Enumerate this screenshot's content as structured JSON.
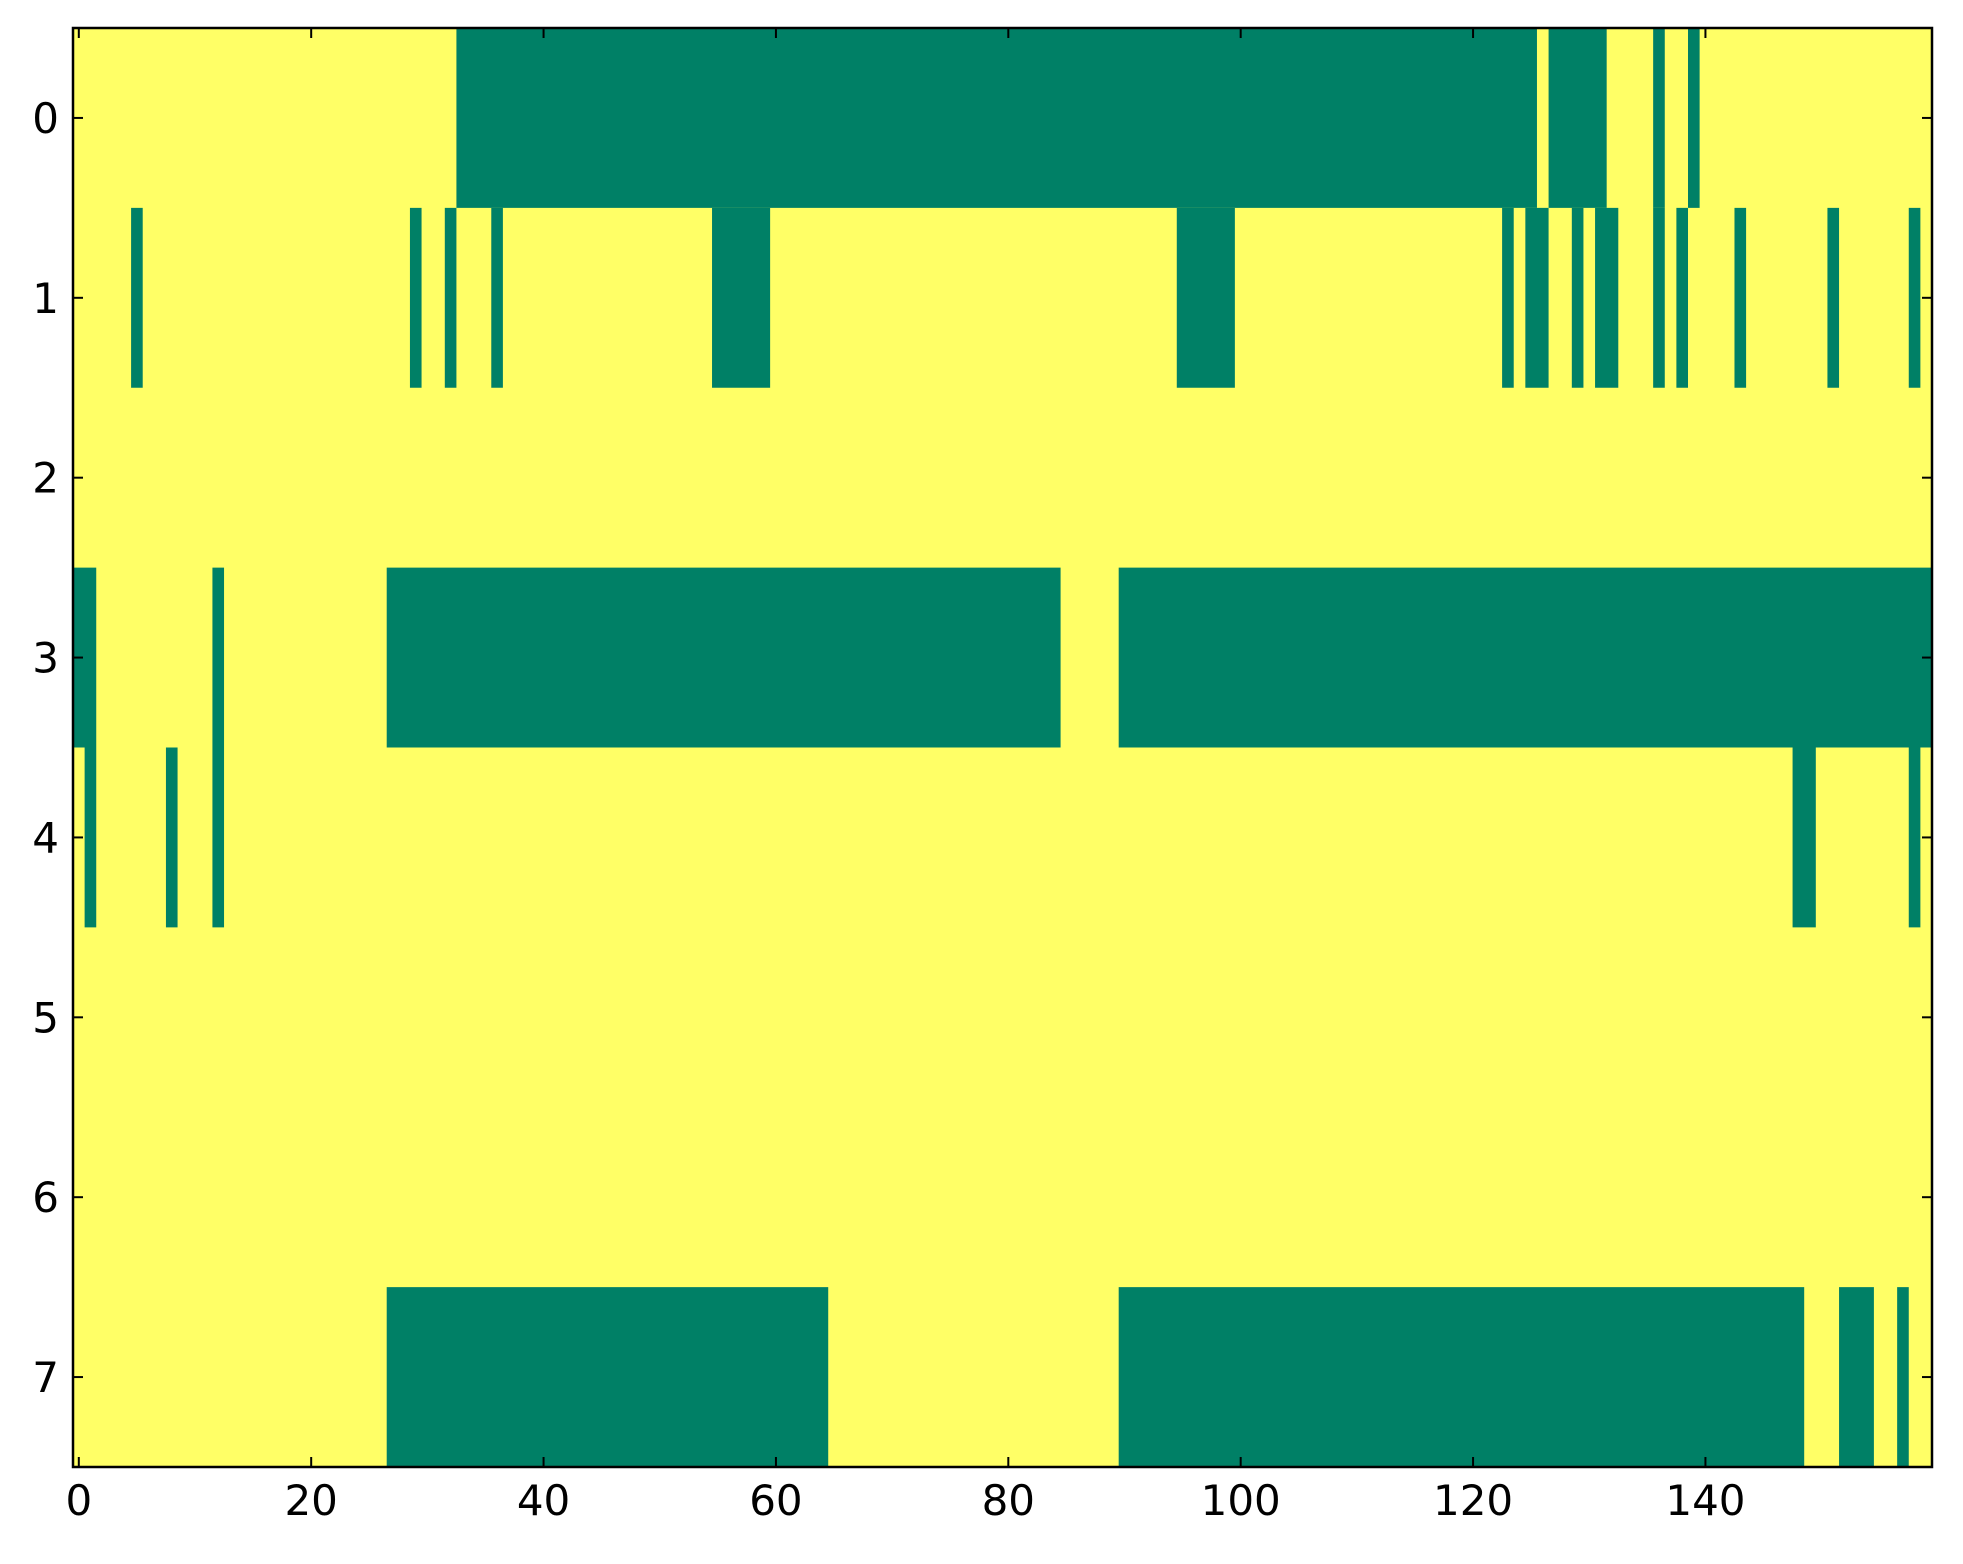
{
  "chart_data": {
    "type": "heatmap",
    "low_color": "#ffff66",
    "high_color": "#008066",
    "xlim": [
      -0.5,
      159.5
    ],
    "ylim": [
      7.5,
      -0.5
    ],
    "xticks": [
      0,
      20,
      40,
      60,
      80,
      100,
      120,
      140
    ],
    "yticks": [
      0,
      1,
      2,
      3,
      4,
      5,
      6,
      7
    ],
    "rows": [
      {
        "y": 0,
        "runs": [
          [
            33,
            125
          ],
          [
            127,
            131
          ],
          [
            136,
            136
          ],
          [
            139,
            139
          ]
        ]
      },
      {
        "y": 1,
        "runs": [
          [
            5,
            5
          ],
          [
            29,
            29
          ],
          [
            32,
            32
          ],
          [
            36,
            36
          ],
          [
            55,
            59
          ],
          [
            95,
            99
          ],
          [
            123,
            123
          ],
          [
            125,
            126
          ],
          [
            129,
            129
          ],
          [
            131,
            132
          ],
          [
            136,
            136
          ],
          [
            138,
            138
          ],
          [
            143,
            143
          ],
          [
            151,
            151
          ],
          [
            158,
            158
          ]
        ]
      },
      {
        "y": 2,
        "runs": []
      },
      {
        "y": 3,
        "runs": [
          [
            0,
            1
          ],
          [
            12,
            12
          ],
          [
            27,
            84
          ],
          [
            90,
            159
          ]
        ]
      },
      {
        "y": 4,
        "runs": [
          [
            1,
            1
          ],
          [
            8,
            8
          ],
          [
            12,
            12
          ],
          [
            148,
            149
          ],
          [
            158,
            158
          ]
        ]
      },
      {
        "y": 5,
        "runs": []
      },
      {
        "y": 6,
        "runs": []
      },
      {
        "y": 7,
        "runs": [
          [
            27,
            64
          ],
          [
            90,
            148
          ],
          [
            152,
            154
          ],
          [
            157,
            157
          ]
        ]
      }
    ]
  }
}
